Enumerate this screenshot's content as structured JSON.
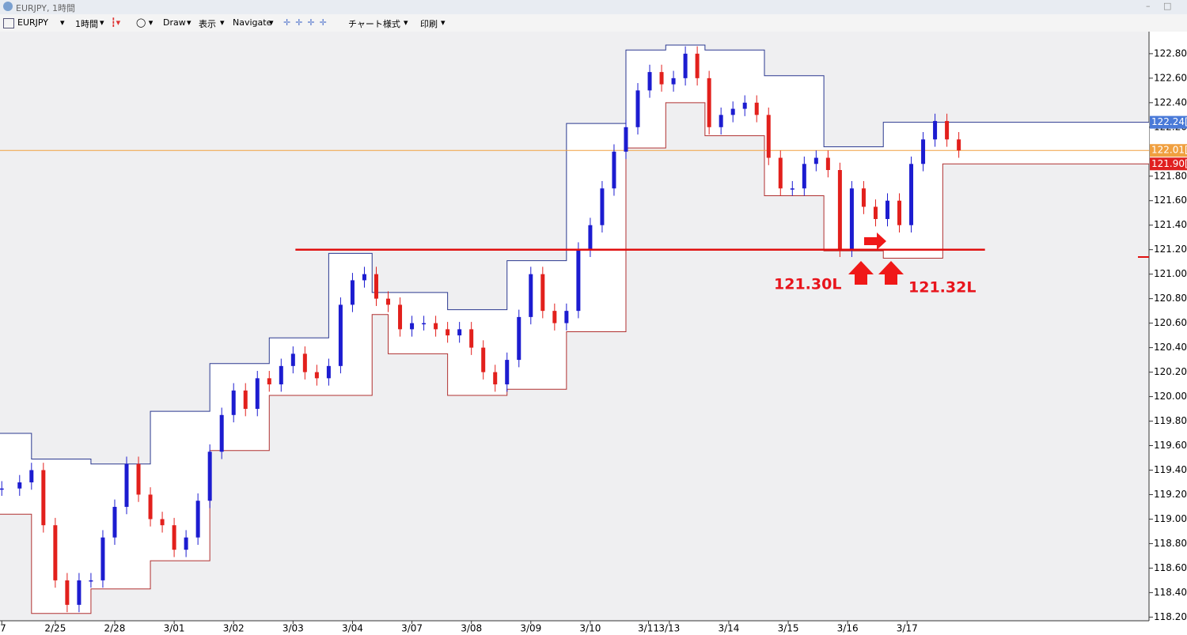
{
  "window": {
    "title": "EURJPY, 1時間"
  },
  "toolbar": {
    "symbol": "EURJPY",
    "timeframe": "1時間",
    "draw": "Draw",
    "view": "表示",
    "navigate": "Navigate",
    "chart_style": "チャート様式",
    "print": "印刷"
  },
  "chart_data": {
    "type": "candlestick",
    "up_color": "#1c1cd0",
    "down_color": "#e2201c",
    "x": [
      0.1,
      0.4,
      0.6,
      0.8,
      1.0,
      1.2,
      1.4,
      1.6,
      1.8,
      2.0,
      2.2,
      2.4,
      2.6,
      2.8,
      3.0,
      3.2,
      3.4,
      3.6,
      3.8,
      4.0,
      4.2,
      4.4,
      4.6,
      4.8,
      5.0,
      5.2,
      5.4,
      5.6,
      5.8,
      6.0,
      6.2,
      6.4,
      6.6,
      6.8,
      7.0,
      7.2,
      7.4,
      7.6,
      7.8,
      8.0,
      8.2,
      8.4,
      8.6,
      8.8,
      9.0,
      9.2,
      9.4,
      9.6,
      9.8,
      10.0,
      10.2,
      10.4,
      10.6,
      10.8,
      11.0,
      11.2,
      11.4,
      11.6,
      11.8,
      12.0,
      12.2,
      12.4,
      12.6,
      12.8,
      13.0,
      13.2,
      13.4,
      13.6,
      13.8,
      14.0,
      14.2,
      14.4,
      14.6,
      14.8,
      15.0,
      15.2,
      15.4,
      15.6,
      15.8,
      16.0,
      16.2
    ],
    "close": [
      119.25,
      119.3,
      119.4,
      118.95,
      118.5,
      118.3,
      118.5,
      118.5,
      118.85,
      119.1,
      119.45,
      119.2,
      119.0,
      118.95,
      118.75,
      118.85,
      119.15,
      119.55,
      119.85,
      120.05,
      119.9,
      120.15,
      120.1,
      120.25,
      120.35,
      120.2,
      120.15,
      120.25,
      120.75,
      120.95,
      121.0,
      120.8,
      120.75,
      120.55,
      120.6,
      120.6,
      120.55,
      120.5,
      120.55,
      120.4,
      120.2,
      120.1,
      120.3,
      120.65,
      121.0,
      120.7,
      120.6,
      120.7,
      121.2,
      121.4,
      121.7,
      122.0,
      122.2,
      122.5,
      122.65,
      122.55,
      122.6,
      122.8,
      122.6,
      122.2,
      122.3,
      122.35,
      122.4,
      122.3,
      121.95,
      121.7,
      121.7,
      121.9,
      121.95,
      121.85,
      121.2,
      121.7,
      121.55,
      121.45,
      121.6,
      121.4,
      121.9,
      122.1,
      122.25,
      122.1,
      122.01
    ],
    "xlim": [
      0.07,
      19.4
    ],
    "xticks": [
      {
        "value": 0.1,
        "label": "7"
      },
      {
        "value": 1,
        "label": "2/25"
      },
      {
        "value": 2,
        "label": "2/28"
      },
      {
        "value": 3,
        "label": "3/01"
      },
      {
        "value": 4,
        "label": "3/02"
      },
      {
        "value": 5,
        "label": "3/03"
      },
      {
        "value": 6,
        "label": "3/04"
      },
      {
        "value": 7,
        "label": "3/07"
      },
      {
        "value": 8,
        "label": "3/08"
      },
      {
        "value": 9,
        "label": "3/09"
      },
      {
        "value": 10,
        "label": "3/10"
      },
      {
        "value": 10.98,
        "label": "3/11"
      },
      {
        "value": 11.33,
        "label": "3/13"
      },
      {
        "value": 12.33,
        "label": "3/14"
      },
      {
        "value": 13.33,
        "label": "3/15"
      },
      {
        "value": 14.33,
        "label": "3/16"
      },
      {
        "value": 15.33,
        "label": "3/17"
      }
    ],
    "ylim": [
      118.17,
      122.98
    ],
    "yticks": [
      {
        "value": 118.2,
        "label": "118.20[0"
      },
      {
        "value": 118.4,
        "label": "118.40[0"
      },
      {
        "value": 118.6,
        "label": "118.60[0"
      },
      {
        "value": 118.8,
        "label": "118.80[0"
      },
      {
        "value": 119,
        "label": "119.00[0"
      },
      {
        "value": 119.2,
        "label": "119.20[0"
      },
      {
        "value": 119.4,
        "label": "119.40[0"
      },
      {
        "value": 119.6,
        "label": "119.60[0"
      },
      {
        "value": 119.8,
        "label": "119.80[0"
      },
      {
        "value": 120,
        "label": "120.00[0"
      },
      {
        "value": 120.2,
        "label": "120.20[0"
      },
      {
        "value": 120.4,
        "label": "120.40[0"
      },
      {
        "value": 120.6,
        "label": "120.60[0"
      },
      {
        "value": 120.8,
        "label": "120.80[0"
      },
      {
        "value": 121,
        "label": "121.00[0"
      },
      {
        "value": 121.2,
        "label": "121.20[0"
      },
      {
        "value": 121.4,
        "label": "121.40[0"
      },
      {
        "value": 121.6,
        "label": "121.60[0"
      },
      {
        "value": 121.8,
        "label": "121.80[0"
      },
      {
        "value": 122.2,
        "label": "122.20[0"
      },
      {
        "value": 122.4,
        "label": "122.40[0"
      },
      {
        "value": 122.6,
        "label": "122.60[0"
      },
      {
        "value": 122.8,
        "label": "122.80[0"
      }
    ],
    "channel": [
      {
        "color": "#2b3990",
        "edges": [
          0.07,
          0.6,
          1.6,
          2.6,
          3.6,
          4.6,
          5.6,
          6.33,
          7.6,
          8.6,
          9.6,
          10.6,
          11.27,
          11.93,
          12.93,
          13.93,
          14.93,
          19.4
        ],
        "values": [
          119.7,
          119.49,
          119.45,
          119.88,
          120.27,
          120.48,
          121.17,
          120.85,
          120.71,
          121.11,
          122.23,
          122.83,
          122.87,
          122.83,
          122.62,
          122.04,
          122.24
        ]
      },
      {
        "color": "#b03030",
        "edges": [
          0.07,
          0.6,
          1.6,
          2.6,
          3.6,
          4.6,
          5.6,
          6.33,
          6.6,
          7.6,
          8.6,
          9.6,
          10.6,
          11.27,
          11.93,
          12.93,
          13.93,
          14.93,
          15.93,
          19.4
        ],
        "values": [
          119.04,
          118.23,
          118.43,
          118.66,
          119.56,
          120.01,
          120.01,
          120.67,
          120.35,
          120.01,
          120.06,
          120.53,
          122.03,
          122.4,
          122.13,
          121.64,
          121.19,
          121.13,
          121.9
        ]
      }
    ],
    "current_price": {
      "value": 122.01,
      "color": "#f0a040"
    },
    "price_tags": [
      {
        "value": 122.24,
        "label": "122.24[",
        "color": "#4a7ad8"
      },
      {
        "value": 122.01,
        "label": "122.01[",
        "color": "#f0a040"
      },
      {
        "value": 121.9,
        "label": "121.90[",
        "color": "#e02020"
      }
    ],
    "support": {
      "value": 121.2,
      "x": [
        5.04,
        16.64
      ],
      "color": "#e01010"
    },
    "annotations": [
      "121.30L",
      "121.32L"
    ]
  }
}
